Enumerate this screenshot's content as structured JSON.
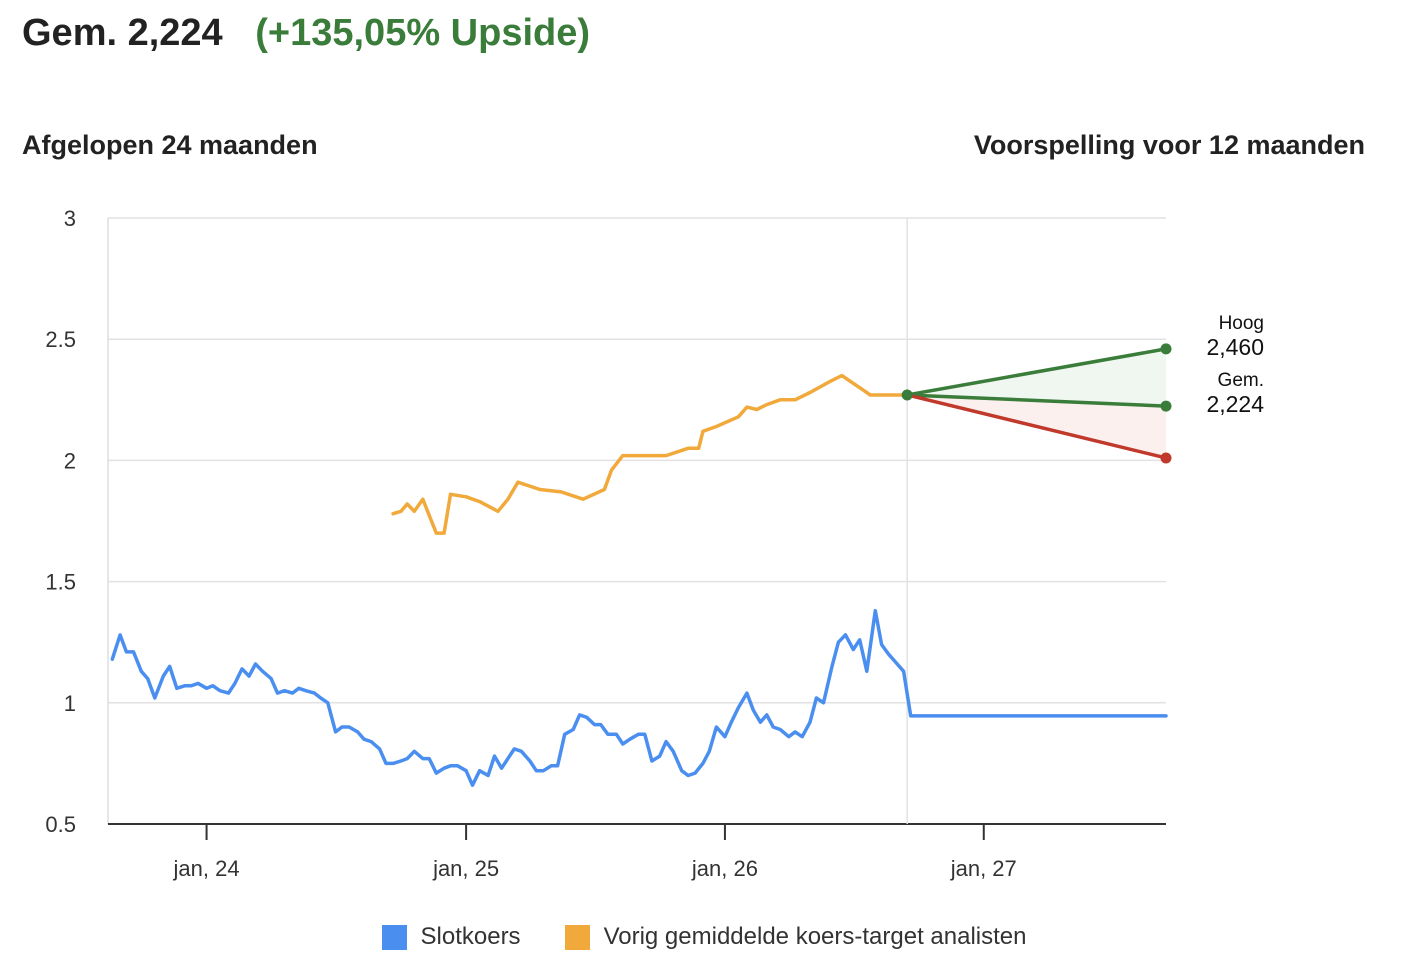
{
  "headline": {
    "price": "Gem. 2,224",
    "upside": "(+135,05% Upside)"
  },
  "subtitles": {
    "left": "Afgelopen 24 maanden",
    "right": "Voorspelling voor 12 maanden"
  },
  "colors": {
    "close": "#4a8ff0",
    "target": "#f0a93a",
    "high": "#3a7d3a",
    "avg": "#3a7d3a",
    "low": "#c0392b",
    "grid": "#e2e2e2",
    "upside_text": "#3a7d3a"
  },
  "legend": [
    {
      "label": "Slotkoers",
      "color": "#4a8ff0"
    },
    {
      "label": "Vorig gemiddelde koers-target analisten",
      "color": "#f0a93a"
    }
  ],
  "chart_data": {
    "type": "line",
    "x_axis": {
      "type": "date",
      "min": "2023-08-15",
      "max": "2027-09-15",
      "ticks": [
        {
          "date": "2024-01-01",
          "label": "jan, 24"
        },
        {
          "date": "2025-01-01",
          "label": "jan, 25"
        },
        {
          "date": "2026-01-01",
          "label": "jan, 26"
        },
        {
          "date": "2027-01-01",
          "label": "jan, 27"
        }
      ]
    },
    "y_axis": {
      "min": 0.5,
      "max": 3,
      "ticks": [
        0.5,
        1,
        1.5,
        2,
        2.5,
        3
      ],
      "tick_labels": [
        "0.5",
        "1",
        "1.5",
        "2",
        "2.5",
        "3"
      ]
    },
    "grid": true,
    "legend_position": "bottom",
    "forecast_start": "2026-09-15",
    "forecast_end": "2027-09-15",
    "series": [
      {
        "name": "Slotkoers",
        "points": [
          [
            "2023-08-21",
            1.18
          ],
          [
            "2023-09-01",
            1.28
          ],
          [
            "2023-09-10",
            1.21
          ],
          [
            "2023-09-20",
            1.21
          ],
          [
            "2023-10-01",
            1.13
          ],
          [
            "2023-10-10",
            1.1
          ],
          [
            "2023-10-20",
            1.02
          ],
          [
            "2023-11-01",
            1.11
          ],
          [
            "2023-11-10",
            1.15
          ],
          [
            "2023-11-20",
            1.06
          ],
          [
            "2023-12-01",
            1.07
          ],
          [
            "2023-12-10",
            1.07
          ],
          [
            "2023-12-20",
            1.08
          ],
          [
            "2024-01-01",
            1.06
          ],
          [
            "2024-01-10",
            1.07
          ],
          [
            "2024-01-20",
            1.05
          ],
          [
            "2024-02-01",
            1.04
          ],
          [
            "2024-02-10",
            1.08
          ],
          [
            "2024-02-20",
            1.14
          ],
          [
            "2024-03-01",
            1.11
          ],
          [
            "2024-03-10",
            1.16
          ],
          [
            "2024-03-20",
            1.13
          ],
          [
            "2024-04-01",
            1.1
          ],
          [
            "2024-04-10",
            1.04
          ],
          [
            "2024-04-20",
            1.05
          ],
          [
            "2024-05-01",
            1.04
          ],
          [
            "2024-05-10",
            1.06
          ],
          [
            "2024-05-20",
            1.05
          ],
          [
            "2024-06-01",
            1.04
          ],
          [
            "2024-06-10",
            1.02
          ],
          [
            "2024-06-20",
            1.0
          ],
          [
            "2024-07-01",
            0.88
          ],
          [
            "2024-07-10",
            0.9
          ],
          [
            "2024-07-20",
            0.9
          ],
          [
            "2024-08-01",
            0.88
          ],
          [
            "2024-08-10",
            0.85
          ],
          [
            "2024-08-20",
            0.84
          ],
          [
            "2024-09-01",
            0.81
          ],
          [
            "2024-09-10",
            0.75
          ],
          [
            "2024-09-20",
            0.75
          ],
          [
            "2024-10-01",
            0.76
          ],
          [
            "2024-10-10",
            0.77
          ],
          [
            "2024-10-20",
            0.8
          ],
          [
            "2024-11-01",
            0.77
          ],
          [
            "2024-11-10",
            0.77
          ],
          [
            "2024-11-20",
            0.71
          ],
          [
            "2024-12-01",
            0.73
          ],
          [
            "2024-12-10",
            0.74
          ],
          [
            "2024-12-20",
            0.74
          ],
          [
            "2025-01-01",
            0.72
          ],
          [
            "2025-01-10",
            0.66
          ],
          [
            "2025-01-20",
            0.72
          ],
          [
            "2025-02-01",
            0.7
          ],
          [
            "2025-02-10",
            0.78
          ],
          [
            "2025-02-20",
            0.73
          ],
          [
            "2025-03-01",
            0.77
          ],
          [
            "2025-03-10",
            0.81
          ],
          [
            "2025-03-20",
            0.8
          ],
          [
            "2025-04-01",
            0.76
          ],
          [
            "2025-04-10",
            0.72
          ],
          [
            "2025-04-20",
            0.72
          ],
          [
            "2025-05-01",
            0.74
          ],
          [
            "2025-05-10",
            0.74
          ],
          [
            "2025-05-20",
            0.87
          ],
          [
            "2025-06-01",
            0.89
          ],
          [
            "2025-06-10",
            0.95
          ],
          [
            "2025-06-20",
            0.94
          ],
          [
            "2025-07-01",
            0.91
          ],
          [
            "2025-07-10",
            0.91
          ],
          [
            "2025-07-20",
            0.87
          ],
          [
            "2025-08-01",
            0.87
          ],
          [
            "2025-08-10",
            0.83
          ],
          [
            "2025-08-20",
            0.85
          ],
          [
            "2025-09-01",
            0.87
          ],
          [
            "2025-09-10",
            0.87
          ],
          [
            "2025-09-20",
            0.76
          ],
          [
            "2025-10-01",
            0.78
          ],
          [
            "2025-10-10",
            0.84
          ],
          [
            "2025-10-20",
            0.8
          ],
          [
            "2025-11-01",
            0.72
          ],
          [
            "2025-11-10",
            0.7
          ],
          [
            "2025-11-20",
            0.71
          ],
          [
            "2025-12-01",
            0.75
          ],
          [
            "2025-12-10",
            0.8
          ],
          [
            "2025-12-20",
            0.9
          ],
          [
            "2026-01-01",
            0.86
          ],
          [
            "2026-01-10",
            0.92
          ],
          [
            "2026-01-20",
            0.98
          ],
          [
            "2026-02-01",
            1.04
          ],
          [
            "2026-02-10",
            0.97
          ],
          [
            "2026-02-20",
            0.92
          ],
          [
            "2026-03-01",
            0.95
          ],
          [
            "2026-03-10",
            0.9
          ],
          [
            "2026-03-20",
            0.89
          ],
          [
            "2026-04-01",
            0.86
          ],
          [
            "2026-04-10",
            0.88
          ],
          [
            "2026-04-20",
            0.86
          ],
          [
            "2026-05-01",
            0.92
          ],
          [
            "2026-05-10",
            1.02
          ],
          [
            "2026-05-20",
            1.0
          ],
          [
            "2026-06-01",
            1.15
          ],
          [
            "2026-06-10",
            1.25
          ],
          [
            "2026-06-20",
            1.28
          ],
          [
            "2026-07-01",
            1.22
          ],
          [
            "2026-07-10",
            1.26
          ],
          [
            "2026-07-20",
            1.13
          ],
          [
            "2026-08-01",
            1.38
          ],
          [
            "2026-08-10",
            1.24
          ],
          [
            "2026-08-20",
            1.2
          ],
          [
            "2026-09-01",
            1.16
          ],
          [
            "2026-09-10",
            1.13
          ]
        ]
      },
      {
        "name": "Vorig gemiddelde koers-target analisten",
        "points": [
          [
            "2024-09-20",
            1.78
          ],
          [
            "2024-10-01",
            1.79
          ],
          [
            "2024-10-10",
            1.82
          ],
          [
            "2024-10-20",
            1.79
          ],
          [
            "2024-11-01",
            1.84
          ],
          [
            "2024-11-20",
            1.7
          ],
          [
            "2024-12-01",
            1.7
          ],
          [
            "2024-12-10",
            1.86
          ],
          [
            "2025-01-01",
            1.85
          ],
          [
            "2025-01-20",
            1.83
          ],
          [
            "2025-02-15",
            1.79
          ],
          [
            "2025-03-01",
            1.84
          ],
          [
            "2025-03-15",
            1.91
          ],
          [
            "2025-04-15",
            1.88
          ],
          [
            "2025-05-15",
            1.87
          ],
          [
            "2025-06-15",
            1.84
          ],
          [
            "2025-07-15",
            1.88
          ],
          [
            "2025-07-25",
            1.96
          ],
          [
            "2025-08-10",
            2.02
          ],
          [
            "2025-09-10",
            2.02
          ],
          [
            "2025-10-10",
            2.02
          ],
          [
            "2025-11-10",
            2.05
          ],
          [
            "2025-11-25",
            2.05
          ],
          [
            "2025-12-01",
            2.12
          ],
          [
            "2025-12-20",
            2.14
          ],
          [
            "2026-01-20",
            2.18
          ],
          [
            "2026-02-01",
            2.22
          ],
          [
            "2026-02-15",
            2.21
          ],
          [
            "2026-03-01",
            2.23
          ],
          [
            "2026-03-20",
            2.25
          ],
          [
            "2026-04-10",
            2.25
          ],
          [
            "2026-05-01",
            2.28
          ],
          [
            "2026-06-01",
            2.33
          ],
          [
            "2026-06-15",
            2.35
          ],
          [
            "2026-07-15",
            2.29
          ],
          [
            "2026-07-25",
            2.27
          ],
          [
            "2026-08-15",
            2.27
          ],
          [
            "2026-09-15",
            2.27
          ]
        ]
      }
    ],
    "forecast": {
      "start_value": 2.27,
      "high": 2.46,
      "avg": 2.224,
      "low": 2.01,
      "high_label": "Hoog",
      "high_value_label": "2,460",
      "avg_label": "Gem.",
      "avg_value_label": "2,224",
      "current_price": 0.946
    }
  }
}
